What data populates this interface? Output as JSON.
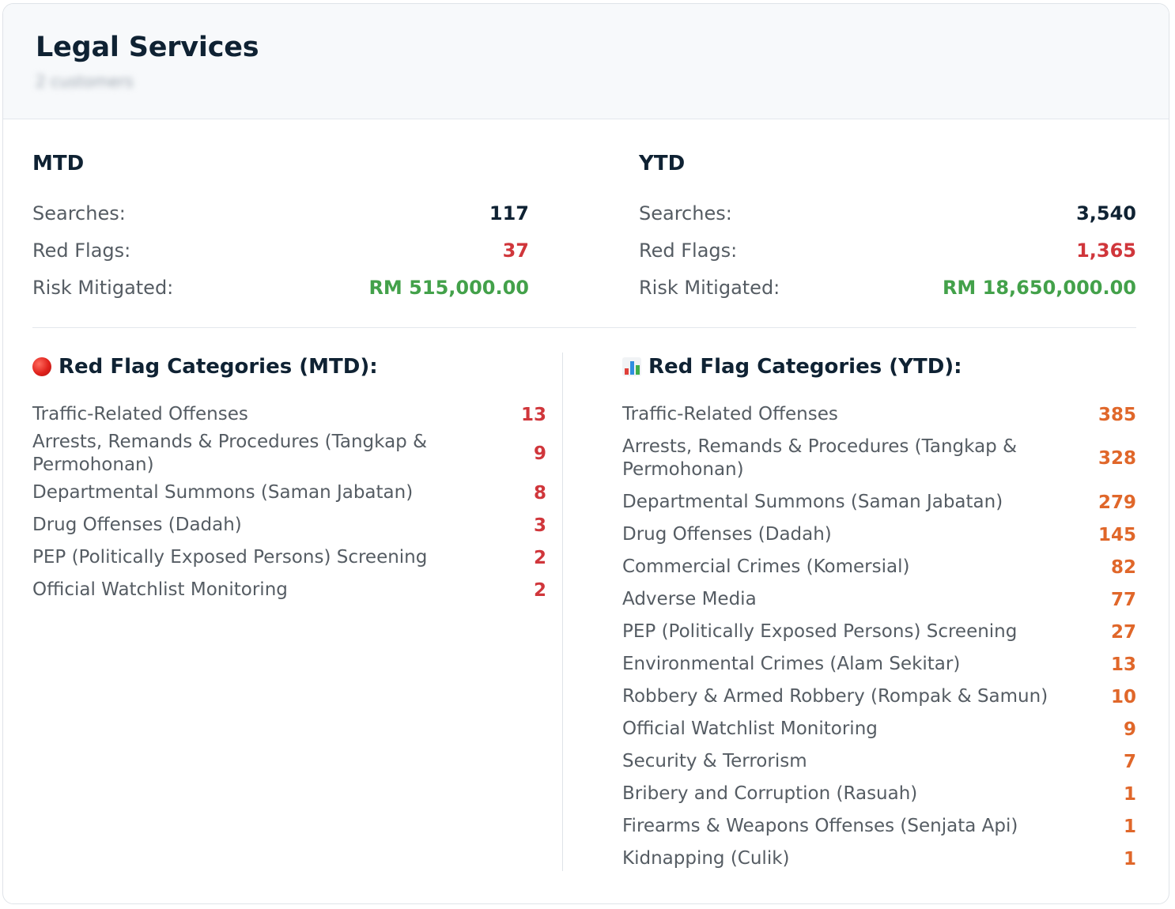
{
  "header": {
    "title": "Legal Services",
    "subtitle": "2 customers"
  },
  "mtd": {
    "heading": "MTD",
    "rows": [
      {
        "label": "Searches:",
        "value": "117"
      },
      {
        "label": "Red Flags:",
        "value": "37"
      },
      {
        "label": "Risk Mitigated:",
        "value": "RM 515,000.00"
      }
    ]
  },
  "ytd": {
    "heading": "YTD",
    "rows": [
      {
        "label": "Searches:",
        "value": "3,540"
      },
      {
        "label": "Red Flags:",
        "value": "1,365"
      },
      {
        "label": "Risk Mitigated:",
        "value": "RM 18,650,000.00"
      }
    ]
  },
  "categories_mtd": {
    "heading": "Red Flag Categories (MTD):",
    "icon": "red-circle-icon",
    "items": [
      {
        "label": "Traffic-Related Offenses",
        "value": "13"
      },
      {
        "label": "Arrests, Remands & Procedures (Tangkap & Permohonan)",
        "value": "9"
      },
      {
        "label": "Departmental Summons (Saman Jabatan)",
        "value": "8"
      },
      {
        "label": "Drug Offenses (Dadah)",
        "value": "3"
      },
      {
        "label": "PEP (Politically Exposed Persons) Screening",
        "value": "2"
      },
      {
        "label": "Official Watchlist Monitoring",
        "value": "2"
      }
    ]
  },
  "categories_ytd": {
    "heading": "Red Flag Categories (YTD):",
    "icon": "bar-chart-icon",
    "items": [
      {
        "label": "Traffic-Related Offenses",
        "value": "385"
      },
      {
        "label": "Arrests, Remands & Procedures (Tangkap & Permohonan)",
        "value": "328"
      },
      {
        "label": "Departmental Summons (Saman Jabatan)",
        "value": "279"
      },
      {
        "label": "Drug Offenses (Dadah)",
        "value": "145"
      },
      {
        "label": "Commercial Crimes (Komersial)",
        "value": "82"
      },
      {
        "label": "Adverse Media",
        "value": "77"
      },
      {
        "label": "PEP (Politically Exposed Persons) Screening",
        "value": "27"
      },
      {
        "label": "Environmental Crimes (Alam Sekitar)",
        "value": "13"
      },
      {
        "label": "Robbery & Armed Robbery (Rompak & Samun)",
        "value": "10"
      },
      {
        "label": "Official Watchlist Monitoring",
        "value": "9"
      },
      {
        "label": "Security & Terrorism",
        "value": "7"
      },
      {
        "label": "Bribery and Corruption (Rasuah)",
        "value": "1"
      },
      {
        "label": "Firearms & Weapons Offenses (Senjata Api)",
        "value": "1"
      },
      {
        "label": "Kidnapping (Culik)",
        "value": "1"
      }
    ]
  },
  "colors": {
    "red_value": "#d0363b",
    "orange_value": "#e0672a",
    "green_value": "#43a14a",
    "heading": "#0f2233"
  }
}
